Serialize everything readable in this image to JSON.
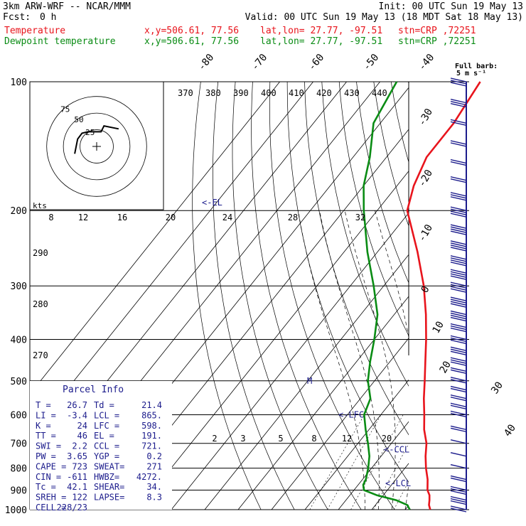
{
  "header": {
    "model": "3km ARW-WRF -- NCAR/MMM",
    "init": "Init: 00 UTC Sun 19 May 13",
    "fcst_label": "Fcst:",
    "fcst_value": "0 h",
    "valid": "Valid: 00 UTC Sun 19 May 13 (18 MDT Sat 18 May 13)",
    "temp_label": "Temperature",
    "dew_label": "Dewpoint temperature",
    "xy": "x,y=506.61, 77.56",
    "latlon": "lat,lon= 27.77, -97.51",
    "stn": "stn=CRP ,72251"
  },
  "colors": {
    "temperature": "#e8141c",
    "dewpoint": "#0a8c14",
    "wind": "#1c1c8c",
    "grid": "#000000"
  },
  "chart_data": {
    "type": "line",
    "title": "",
    "ylabel": "",
    "y_scale": "log-pressure",
    "ylim": [
      1000,
      100
    ],
    "pressure_ticks": [
      100,
      200,
      300,
      400,
      500,
      600,
      700,
      800,
      900,
      1000
    ],
    "isotherm_labels": [
      "-80",
      "-70",
      "-60",
      "-50",
      "-40",
      "-30",
      "-20",
      "-10",
      "0",
      "10",
      "20",
      "30",
      "40"
    ],
    "theta_labels": [
      "370",
      "380",
      "390",
      "400",
      "410",
      "420",
      "430",
      "440"
    ],
    "theta_low_labels": [
      "290",
      "280",
      "270"
    ],
    "mixing_ratio_labels": [
      "2",
      "3",
      "5",
      "8",
      "12",
      "20"
    ],
    "series": [
      {
        "name": "Temperature",
        "points": [
          [
            1000,
            27.5
          ],
          [
            975,
            26.0
          ],
          [
            950,
            25.0
          ],
          [
            925,
            23.8
          ],
          [
            900,
            22.0
          ],
          [
            850,
            19.5
          ],
          [
            800,
            16.3
          ],
          [
            750,
            13.3
          ],
          [
            700,
            10.5
          ],
          [
            650,
            6.5
          ],
          [
            600,
            3.0
          ],
          [
            550,
            -1.0
          ],
          [
            500,
            -5.0
          ],
          [
            450,
            -9.5
          ],
          [
            400,
            -14.5
          ],
          [
            350,
            -20.5
          ],
          [
            300,
            -28.0
          ],
          [
            250,
            -38.0
          ],
          [
            200,
            -51.0
          ],
          [
            175,
            -55.0
          ],
          [
            150,
            -58.0
          ],
          [
            125,
            -58.0
          ],
          [
            100,
            -60.0
          ]
        ]
      },
      {
        "name": "Dewpoint temperature",
        "points": [
          [
            1000,
            21.4
          ],
          [
            975,
            19.5
          ],
          [
            950,
            15.0
          ],
          [
            925,
            8.0
          ],
          [
            900,
            3.0
          ],
          [
            875,
            1.5
          ],
          [
            850,
            1.0
          ],
          [
            800,
            -1.0
          ],
          [
            750,
            -3.5
          ],
          [
            700,
            -7.0
          ],
          [
            650,
            -11.0
          ],
          [
            600,
            -15.0
          ],
          [
            550,
            -17.0
          ],
          [
            500,
            -22.0
          ],
          [
            450,
            -26.0
          ],
          [
            400,
            -30.0
          ],
          [
            350,
            -35.0
          ],
          [
            300,
            -43.0
          ],
          [
            250,
            -53.0
          ],
          [
            200,
            -64.0
          ],
          [
            175,
            -70.0
          ],
          [
            150,
            -75.0
          ],
          [
            125,
            -82.0
          ],
          [
            100,
            -85.0
          ]
        ]
      }
    ],
    "levels": {
      "EL": 191,
      "LFC": 598,
      "CCL": 721,
      "LCL": 865,
      "M": 500
    },
    "level_labels": {
      "EL": "<-EL",
      "LFC": "<-LFC",
      "CCL": "<-CCL",
      "LCL": "<-LCL",
      "M": "M"
    },
    "hodograph": {
      "unit_label": "kts",
      "ring_labels": [
        "75",
        "50",
        "25"
      ],
      "speed_labels": [
        "8",
        "12",
        "16",
        "20",
        "24",
        "28",
        "32"
      ],
      "path": [
        [
          -15,
          -5
        ],
        [
          -13,
          5
        ],
        [
          -10,
          9
        ],
        [
          -6,
          10
        ],
        [
          3,
          10
        ],
        [
          5,
          14
        ],
        [
          15,
          12
        ]
      ]
    },
    "barb_legend": {
      "title": "Full barb:",
      "value": "5 m s⁻¹"
    },
    "wind_barbs": [
      {
        "p": 100,
        "speed": 15
      },
      {
        "p": 112,
        "speed": 15
      },
      {
        "p": 125,
        "speed": 10
      },
      {
        "p": 140,
        "speed": 10
      },
      {
        "p": 155,
        "speed": 10
      },
      {
        "p": 170,
        "speed": 10
      },
      {
        "p": 185,
        "speed": 15
      },
      {
        "p": 200,
        "speed": 20
      },
      {
        "p": 220,
        "speed": 20
      },
      {
        "p": 240,
        "speed": 20
      },
      {
        "p": 260,
        "speed": 20
      },
      {
        "p": 280,
        "speed": 20
      },
      {
        "p": 300,
        "speed": 20
      },
      {
        "p": 325,
        "speed": 20
      },
      {
        "p": 350,
        "speed": 20
      },
      {
        "p": 375,
        "speed": 15
      },
      {
        "p": 400,
        "speed": 15
      },
      {
        "p": 425,
        "speed": 15
      },
      {
        "p": 450,
        "speed": 15
      },
      {
        "p": 475,
        "speed": 10
      },
      {
        "p": 500,
        "speed": 10
      },
      {
        "p": 525,
        "speed": 10
      },
      {
        "p": 550,
        "speed": 10
      },
      {
        "p": 575,
        "speed": 10
      },
      {
        "p": 600,
        "speed": 10
      },
      {
        "p": 650,
        "speed": 10
      },
      {
        "p": 700,
        "speed": 5
      },
      {
        "p": 750,
        "speed": 5
      },
      {
        "p": 800,
        "speed": 5
      },
      {
        "p": 850,
        "speed": 10
      },
      {
        "p": 900,
        "speed": 15
      },
      {
        "p": 950,
        "speed": 15
      },
      {
        "p": 1000,
        "speed": 10
      }
    ],
    "parcel_info": {
      "title": "Parcel Info",
      "rows": [
        [
          "T  =",
          "26.7",
          "Td =",
          "21.4"
        ],
        [
          "LI =",
          "-3.4",
          "LCL =",
          "865."
        ],
        [
          "K  =",
          "24",
          "LFC =",
          "598."
        ],
        [
          "TT =",
          "46",
          "EL  =",
          "191."
        ],
        [
          "SWI =",
          "2.2",
          "CCL =",
          "721."
        ],
        [
          "PW =",
          "3.65",
          "YGP =",
          "0.2"
        ],
        [
          "CAPE =",
          "723",
          "SWEAT=",
          "271"
        ],
        [
          "CIN =",
          "-611",
          "HWBZ=",
          "4272."
        ],
        [
          "Tc =",
          "42.1",
          "SHEAR=",
          "34."
        ],
        [
          "SREH =",
          "122",
          "LAPSE=",
          "8.3"
        ],
        [
          "CELL =",
          "228/23",
          "",
          ""
        ]
      ]
    }
  }
}
